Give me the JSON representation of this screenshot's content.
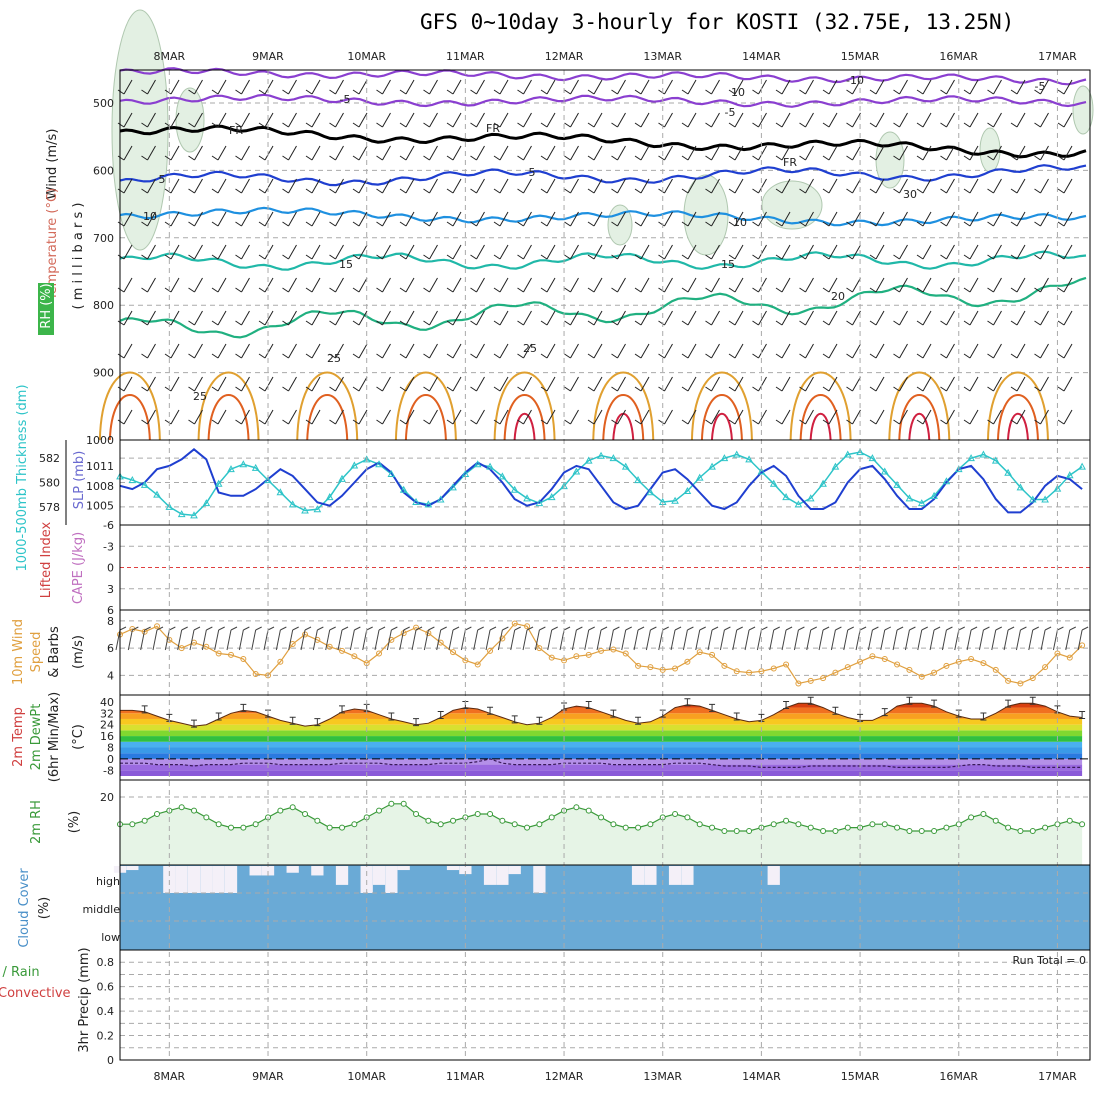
{
  "title": "GFS 0~10day 3-hourly for KOSTI (32.75E, 13.25N)",
  "dates": [
    "8MAR",
    "9MAR",
    "10MAR",
    "11MAR",
    "12MAR",
    "13MAR",
    "14MAR",
    "15MAR",
    "16MAR",
    "17MAR"
  ],
  "colors": {
    "frame": "#000000",
    "grid": "#aaaaaa",
    "thickness": "#2dc4c8",
    "slp": "#1f3fd0",
    "lifted_zero": "#e04040",
    "wind10m": "#e0a040",
    "rh2m": "#3a9a3a",
    "rh_fill": "#e6f4e6",
    "cloud": "#6aaad6",
    "cloud_gap": "#f4f0f8",
    "temp_neg5": "#8a3fd0",
    "temp_5": "#1f3fd0",
    "temp_10": "#1e90e0",
    "temp_15": "#20b8a8",
    "temp_20": "#20b080",
    "temp_25": "#e0a030",
    "temp_30": "#e06020",
    "temp_35": "#d02040",
    "freeze": "#000000"
  },
  "panels": {
    "upper_air": {
      "ylabel_wind": "Wind (m/s)",
      "ylabel_temp": "Temperature (°C)",
      "ylabel_rh": "RH (%)",
      "ylabel_units": "( m i l l i b a r s )",
      "pressure_ticks": [
        "500",
        "600",
        "700",
        "800",
        "900",
        "1000"
      ],
      "contour_labels": [
        "-10",
        "-5",
        "-5",
        "-5",
        "FR",
        "FR",
        "FR",
        "5",
        "5",
        "10",
        "10",
        "15",
        "15",
        "20",
        "25",
        "25",
        "25",
        "10",
        "30"
      ]
    },
    "thickness_slp": {
      "ylabel_thickness": "1000-500mb Thickness (dm)",
      "ylabel_slp": "SLP (mb)",
      "left_ticks": [
        "582",
        "580",
        "578"
      ],
      "right_ticks": [
        "1011",
        "1008",
        "1005"
      ]
    },
    "lifted_cape": {
      "ylabel_li": "Lifted Index",
      "ylabel_cape": "CAPE (J/kg)",
      "ticks": [
        "-6",
        "-3",
        "0",
        "3",
        "6"
      ]
    },
    "wind10m": {
      "ylabel_1": "10m Wind",
      "ylabel_2": "Speed",
      "ylabel_3": "& Barbs",
      "ylabel_units": "(m/s)",
      "ticks": [
        "8",
        "6",
        "4"
      ]
    },
    "temp2m": {
      "ylabel_1": "2m Temp",
      "ylabel_2": "2m DewPt",
      "ylabel_3": "(6hr Min/Max)",
      "ylabel_units": "(°C)",
      "ticks": [
        "40",
        "32",
        "24",
        "16",
        "8",
        "0",
        "-8"
      ]
    },
    "rh2m": {
      "ylabel": "2m RH",
      "ylabel_units": "(%)",
      "ticks": [
        "20"
      ]
    },
    "cloud": {
      "ylabel": "Cloud Cover",
      "ylabel_units": "(%)",
      "levels": [
        "high",
        "middle",
        "low"
      ]
    },
    "precip": {
      "ylabel_1": "Total / Rain",
      "ylabel_2": "Convective",
      "ylabel_3": "3hr Precip (mm)",
      "ticks": [
        "0.8",
        "0.6",
        "0.4",
        "0.2",
        "0"
      ],
      "run_total": "Run Total = 0"
    }
  },
  "chart_data": [
    {
      "type": "line",
      "title": "1000-500mb Thickness (dm) / SLP (mb)",
      "x": [
        "7.5MAR",
        "7.625",
        "7.75",
        "7.875",
        "8.0",
        "8.125",
        "8.25",
        "8.375",
        "8.5",
        "8.625",
        "8.75",
        "8.875",
        "9.0",
        "9.125",
        "9.25",
        "9.375",
        "9.5",
        "9.625",
        "9.75",
        "9.875",
        "10.0",
        "10.125",
        "10.25",
        "10.375",
        "10.5",
        "10.625",
        "10.75",
        "10.875",
        "11.0",
        "11.125",
        "11.25",
        "11.375",
        "11.5",
        "11.625",
        "11.75",
        "11.875",
        "12.0",
        "12.125",
        "12.25",
        "12.375",
        "12.5",
        "12.625",
        "12.75",
        "12.875",
        "13.0",
        "13.125",
        "13.25",
        "13.375",
        "13.5",
        "13.625",
        "13.75",
        "13.875",
        "14.0",
        "14.125",
        "14.25",
        "14.375",
        "14.5",
        "14.625",
        "14.75",
        "14.875",
        "15.0",
        "15.125",
        "15.25",
        "15.375",
        "15.5",
        "15.625",
        "15.75",
        "15.875",
        "16.0",
        "16.125",
        "16.25",
        "16.375",
        "16.5",
        "16.625",
        "16.75",
        "16.875",
        "17.0",
        "17.125",
        "17.25"
      ],
      "series": [
        {
          "name": "1000-500mb Thickness (dm)",
          "axis": "left",
          "values": [
            580.5,
            580.2,
            579.8,
            579.0,
            578.0,
            577.4,
            577.3,
            578.3,
            579.9,
            581.1,
            581.5,
            581.2,
            580.2,
            579.2,
            578.2,
            577.7,
            577.8,
            578.8,
            580.3,
            581.4,
            581.9,
            581.5,
            580.7,
            579.4,
            578.4,
            578.2,
            578.6,
            579.6,
            580.7,
            581.5,
            581.3,
            580.5,
            579.4,
            578.7,
            578.3,
            578.8,
            579.7,
            580.9,
            581.8,
            582.2,
            582.0,
            581.3,
            580.2,
            579.2,
            578.4,
            578.5,
            579.3,
            580.4,
            581.3,
            582.0,
            582.3,
            581.9,
            580.9,
            579.9,
            578.8,
            578.2,
            578.7,
            579.9,
            581.3,
            582.3,
            582.5,
            582.0,
            580.9,
            579.8,
            578.7,
            578.3,
            578.9,
            580.1,
            581.1,
            582.0,
            582.3,
            581.8,
            580.8,
            579.6,
            578.6,
            578.6,
            579.5,
            580.6,
            581.3
          ]
        },
        {
          "name": "SLP (mb)",
          "axis": "right",
          "values": [
            1008.0,
            1007.5,
            1008.5,
            1010.5,
            1011.0,
            1012.0,
            1013.5,
            1012.0,
            1007.0,
            1006.5,
            1006.5,
            1007.5,
            1009.0,
            1010.5,
            1009.5,
            1007.5,
            1005.5,
            1005.0,
            1006.5,
            1008.5,
            1010.5,
            1011.5,
            1010.0,
            1007.0,
            1005.5,
            1005.0,
            1006.0,
            1008.0,
            1010.0,
            1011.5,
            1010.5,
            1008.5,
            1006.0,
            1005.0,
            1005.5,
            1007.5,
            1010.0,
            1011.0,
            1010.5,
            1008.0,
            1005.5,
            1004.5,
            1005.0,
            1007.5,
            1010.0,
            1010.5,
            1009.0,
            1007.0,
            1005.0,
            1004.5,
            1005.5,
            1008.0,
            1010.0,
            1011.0,
            1009.5,
            1006.5,
            1004.5,
            1004.5,
            1005.5,
            1008.5,
            1010.5,
            1011.0,
            1009.0,
            1006.5,
            1004.5,
            1004.5,
            1006.0,
            1008.5,
            1010.5,
            1011.0,
            1009.0,
            1006.0,
            1004.0,
            1004.0,
            1005.5,
            1008.0,
            1009.5,
            1009.0,
            1007.5
          ]
        }
      ],
      "ylim_left": [
        577,
        583
      ],
      "ylim_right": [
        1003,
        1014
      ]
    },
    {
      "type": "line",
      "title": "10m Wind Speed (m/s)",
      "x_start": "7.5MAR",
      "x_step_days": 0.125,
      "series": [
        {
          "name": "10m Wind Speed",
          "values": [
            7.0,
            7.4,
            7.2,
            7.6,
            6.6,
            6.0,
            6.4,
            6.1,
            5.6,
            5.5,
            5.2,
            4.1,
            4.0,
            5.0,
            6.3,
            7.0,
            6.6,
            6.1,
            5.8,
            5.4,
            4.9,
            5.6,
            6.6,
            7.1,
            7.5,
            7.1,
            6.4,
            5.7,
            5.1,
            4.8,
            5.8,
            6.7,
            7.8,
            7.6,
            6.0,
            5.3,
            5.1,
            5.4,
            5.5,
            5.8,
            5.9,
            5.6,
            4.7,
            4.6,
            4.4,
            4.5,
            5.0,
            5.7,
            5.5,
            4.7,
            4.3,
            4.2,
            4.3,
            4.5,
            4.8,
            3.4,
            3.6,
            3.8,
            4.2,
            4.6,
            5.0,
            5.4,
            5.2,
            4.8,
            4.4,
            3.9,
            4.2,
            4.7,
            5.0,
            5.2,
            4.9,
            4.4,
            3.6,
            3.4,
            3.8,
            4.6,
            5.6,
            5.3,
            6.2
          ]
        }
      ],
      "ylim": [
        3,
        8.5
      ]
    },
    {
      "type": "area",
      "title": "2m Temp / 2m DewPt (°C)",
      "x_start": "7.5MAR",
      "x_step_days": 0.125,
      "series": [
        {
          "name": "2m Temp",
          "values": [
            34,
            34,
            33,
            30,
            27,
            25,
            23,
            24,
            28,
            32,
            34,
            33,
            30,
            27,
            25,
            23,
            24,
            28,
            33,
            35,
            34,
            31,
            28,
            26,
            24,
            25,
            29,
            34,
            36,
            35,
            32,
            29,
            26,
            24,
            25,
            29,
            35,
            37,
            36,
            33,
            30,
            27,
            25,
            26,
            30,
            36,
            38,
            37,
            34,
            31,
            28,
            26,
            27,
            31,
            36,
            39,
            39,
            36,
            32,
            29,
            27,
            27,
            31,
            37,
            39,
            39,
            37,
            33,
            30,
            28,
            28,
            32,
            37,
            39,
            39,
            37,
            33,
            30,
            29
          ]
        },
        {
          "name": "2m DewPt",
          "values": [
            -3,
            -3,
            -3,
            -4,
            -4,
            -4,
            -5,
            -4,
            -4,
            -4,
            -3,
            -3,
            -3,
            -4,
            -4,
            -4,
            -4,
            -4,
            -3,
            -3,
            -3,
            -3,
            -4,
            -4,
            -4,
            -4,
            -3,
            -3,
            -3,
            -2,
            0,
            -3,
            -4,
            -4,
            -4,
            -4,
            -3,
            -3,
            -3,
            -3,
            -4,
            -4,
            -4,
            -4,
            -4,
            -3,
            -3,
            -3,
            -4,
            -5,
            -5,
            -5,
            -6,
            -6,
            -6,
            -6,
            -5,
            -5,
            -5,
            -5,
            -5,
            -5,
            -5,
            -6,
            -6,
            -6,
            -6,
            -6,
            -5,
            -4,
            -4,
            -5,
            -5,
            -5,
            -6,
            -6,
            -6,
            -6,
            -6
          ]
        }
      ],
      "ylim": [
        -12,
        42
      ]
    },
    {
      "type": "area",
      "title": "2m RH (%)",
      "x_start": "7.5MAR",
      "x_step_days": 0.125,
      "series": [
        {
          "name": "2m RH",
          "values": [
            12,
            12,
            13,
            15,
            16,
            17,
            16,
            14,
            12,
            11,
            11,
            12,
            14,
            16,
            17,
            15,
            13,
            11,
            11,
            12,
            14,
            16,
            18,
            18,
            15,
            13,
            12,
            13,
            14,
            15,
            15,
            13,
            12,
            11,
            12,
            14,
            16,
            17,
            16,
            14,
            12,
            11,
            11,
            12,
            14,
            15,
            14,
            12,
            11,
            10,
            10,
            10,
            11,
            12,
            13,
            12,
            11,
            10,
            10,
            11,
            11,
            12,
            12,
            11,
            10,
            10,
            10,
            11,
            12,
            14,
            15,
            13,
            11,
            10,
            10,
            11,
            12,
            13,
            12
          ]
        }
      ],
      "ylim": [
        0,
        25
      ]
    },
    {
      "type": "bar",
      "title": "Cloud Cover (%) — high",
      "x_start": "7.5MAR",
      "x_step_days": 0.125,
      "series": [
        {
          "name": "high cloud cover (%)",
          "values": [
            75,
            85,
            100,
            100,
            0,
            0,
            0,
            0,
            0,
            0,
            100,
            65,
            65,
            100,
            75,
            100,
            65,
            100,
            30,
            100,
            0,
            30,
            0,
            85,
            100,
            100,
            100,
            85,
            70,
            100,
            30,
            30,
            70,
            100,
            0,
            100,
            100,
            100,
            100,
            100,
            100,
            100,
            30,
            30,
            100,
            30,
            30,
            100,
            100,
            100,
            100,
            100,
            100,
            30,
            100,
            100,
            100,
            100,
            100,
            100,
            100,
            100,
            100,
            100,
            100,
            100,
            100,
            100,
            100,
            100,
            100,
            100,
            100,
            100,
            100,
            100,
            100,
            100,
            100
          ]
        }
      ],
      "ylim": [
        0,
        100
      ]
    },
    {
      "type": "bar",
      "title": "3hr Precip (mm)",
      "series": [
        {
          "name": "Total / Rain",
          "values": []
        },
        {
          "name": "Convective",
          "values": []
        }
      ],
      "ylim": [
        0,
        0.9
      ]
    }
  ]
}
